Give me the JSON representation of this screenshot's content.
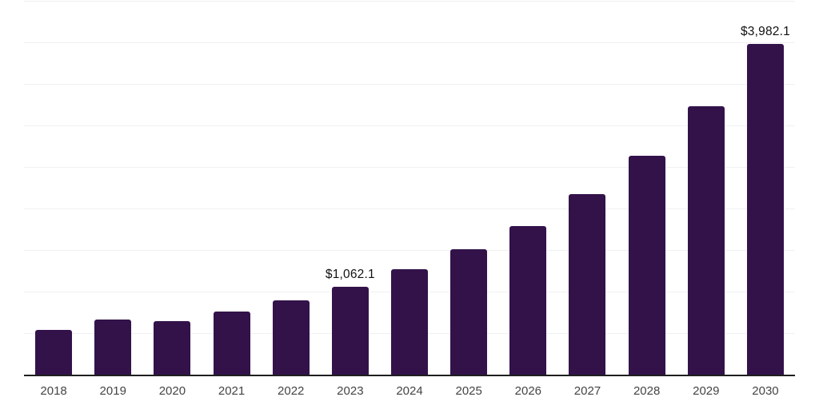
{
  "chart_data": {
    "type": "bar",
    "title": "",
    "xlabel": "",
    "ylabel": "",
    "legend": "none",
    "grid": "horizontal",
    "ylim": [
      0,
      4500
    ],
    "gridline_step": 500,
    "categories": [
      "2018",
      "2019",
      "2020",
      "2021",
      "2022",
      "2023",
      "2024",
      "2025",
      "2026",
      "2027",
      "2028",
      "2029",
      "2030"
    ],
    "values": [
      535,
      660,
      645,
      760,
      890,
      1062.1,
      1265,
      1505,
      1785,
      2170,
      2630,
      3235,
      3982.1
    ],
    "data_labels": [
      {
        "category": "2023",
        "value": 1062.1,
        "text": "$1,062.1"
      },
      {
        "category": "2030",
        "value": 3982.1,
        "text": "$3,982.1"
      }
    ],
    "colors": {
      "bar": "#33124a",
      "gridline": "#f0f0f2",
      "axis": "#1f1f1f",
      "tick_label": "#444444",
      "value_label": "#111111",
      "background": "#ffffff"
    }
  }
}
